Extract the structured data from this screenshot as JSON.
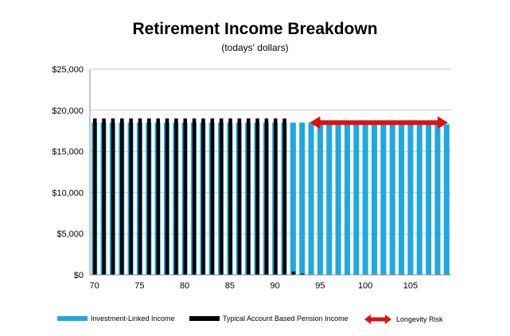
{
  "chart_data": {
    "type": "bar",
    "title": "Retirement Income Breakdown",
    "subtitle": "(todays' dollars)",
    "xlabel": "",
    "ylabel": "",
    "ylim": [
      0,
      25000
    ],
    "yticks": [
      "$0",
      "$5,000",
      "$10,000",
      "$15,000",
      "$20,000",
      "$25,000"
    ],
    "ytick_values": [
      0,
      5000,
      10000,
      15000,
      20000,
      25000
    ],
    "xtick_labels": [
      "70",
      "75",
      "80",
      "85",
      "90",
      "95",
      "100",
      "105"
    ],
    "xtick_values": [
      70,
      75,
      80,
      85,
      90,
      95,
      100,
      105
    ],
    "grid": true,
    "legend_position": "bottom",
    "categories": [
      70,
      71,
      72,
      73,
      74,
      75,
      76,
      77,
      78,
      79,
      80,
      81,
      82,
      83,
      84,
      85,
      86,
      87,
      88,
      89,
      90,
      91,
      92,
      93,
      94,
      95,
      96,
      97,
      98,
      99,
      100,
      101,
      102,
      103,
      104,
      105,
      106,
      107,
      108,
      109
    ],
    "series": [
      {
        "name": "Investment-Linked Income",
        "color": "#1FA8E0",
        "values": [
          18500,
          18500,
          18500,
          18500,
          18500,
          18500,
          18500,
          18500,
          18500,
          18500,
          18500,
          18500,
          18500,
          18500,
          18500,
          18500,
          18500,
          18500,
          18500,
          18500,
          18500,
          18500,
          18500,
          18500,
          18500,
          18300,
          18300,
          18300,
          18300,
          18300,
          18300,
          18300,
          18300,
          18300,
          18300,
          18300,
          18300,
          18300,
          18300,
          18300
        ]
      },
      {
        "name": "Typical Account Based Pension Income",
        "color": "#000000",
        "values": [
          19000,
          19000,
          19000,
          19000,
          19000,
          19000,
          19000,
          19000,
          19000,
          19000,
          19000,
          19000,
          19000,
          19000,
          19000,
          19000,
          19000,
          19000,
          19000,
          19000,
          19000,
          19000,
          400,
          150,
          50,
          0,
          0,
          0,
          0,
          0,
          0,
          0,
          0,
          0,
          0,
          0,
          0,
          0,
          0,
          0
        ]
      }
    ],
    "annotation": {
      "name": "Longevity Risk",
      "color": "#E01010",
      "x_start": 94,
      "x_end": 109,
      "y": 18500
    }
  }
}
